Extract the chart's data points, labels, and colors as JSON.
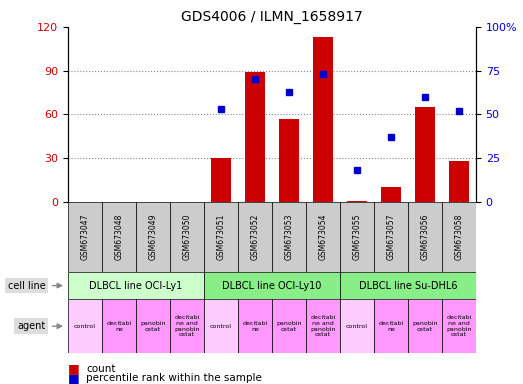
{
  "title": "GDS4006 / ILMN_1658917",
  "categories": [
    "GSM673047",
    "GSM673048",
    "GSM673049",
    "GSM673050",
    "GSM673051",
    "GSM673052",
    "GSM673053",
    "GSM673054",
    "GSM673055",
    "GSM673057",
    "GSM673056",
    "GSM673058"
  ],
  "bar_values": [
    0,
    0,
    0,
    0,
    30,
    89,
    57,
    113,
    1,
    10,
    65,
    28
  ],
  "dot_values": [
    null,
    null,
    null,
    null,
    53,
    70,
    63,
    73,
    18,
    37,
    60,
    52
  ],
  "bar_color": "#cc0000",
  "dot_color": "#0000cc",
  "ylim_left": [
    0,
    120
  ],
  "ylim_right": [
    0,
    100
  ],
  "yticks_left": [
    0,
    30,
    60,
    90,
    120
  ],
  "yticks_right": [
    0,
    25,
    50,
    75,
    100
  ],
  "ytick_labels_left": [
    "0",
    "30",
    "60",
    "90",
    "120"
  ],
  "ytick_labels_right": [
    "0",
    "25",
    "50",
    "75",
    "100%"
  ],
  "cell_lines": [
    {
      "label": "DLBCL line OCI-Ly1",
      "start": 0,
      "end": 4,
      "color": "#ccffcc"
    },
    {
      "label": "DLBCL line OCI-Ly10",
      "start": 4,
      "end": 8,
      "color": "#88ee88"
    },
    {
      "label": "DLBCL line Su-DHL6",
      "start": 8,
      "end": 12,
      "color": "#88ee88"
    }
  ],
  "agents": [
    {
      "label": "control",
      "color": "#ffccff"
    },
    {
      "label": "decitabi\nne",
      "color": "#ff99ff"
    },
    {
      "label": "panobin\nostat",
      "color": "#ff99ff"
    },
    {
      "label": "decitabi\nne and\npanobin\nostat",
      "color": "#ff99ff"
    },
    {
      "label": "control",
      "color": "#ffccff"
    },
    {
      "label": "decitabi\nne",
      "color": "#ff99ff"
    },
    {
      "label": "panobin\nostat",
      "color": "#ff99ff"
    },
    {
      "label": "decitabi\nne and\npanobin\nostat",
      "color": "#ff99ff"
    },
    {
      "label": "control",
      "color": "#ffccff"
    },
    {
      "label": "decitabi\nne",
      "color": "#ff99ff"
    },
    {
      "label": "panobin\nostat",
      "color": "#ff99ff"
    },
    {
      "label": "decitabi\nne and\npanobin\nostat",
      "color": "#ff99ff"
    }
  ],
  "legend_count_color": "#cc0000",
  "legend_dot_color": "#0000cc",
  "background_color": "#ffffff",
  "tick_label_color_left": "#cc0000",
  "tick_label_color_right": "#0000cc",
  "gsm_bg_color": "#cccccc",
  "cell_line_label_bg": "#dddddd",
  "left_label_bg": "#dddddd"
}
